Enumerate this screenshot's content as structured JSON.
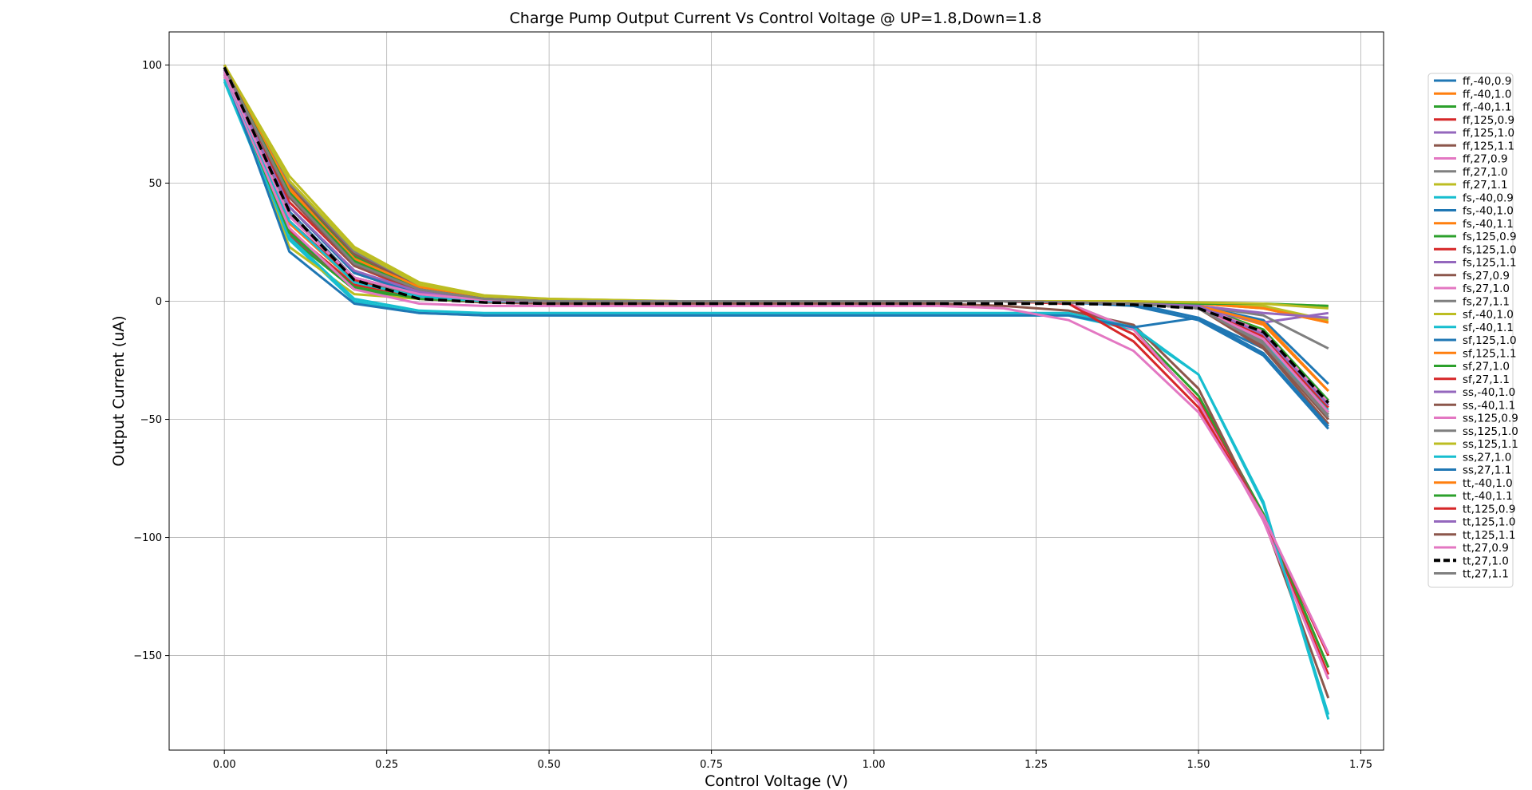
{
  "chart_data": {
    "type": "line",
    "title": "Charge Pump Output Current Vs Control Voltage @ UP=1.8,Down=1.8",
    "xlabel": "Control Voltage (V)",
    "ylabel": "Output Current (uA)",
    "xlim": [
      -0.085,
      1.785
    ],
    "ylim": [
      -190,
      114
    ],
    "xticks": [
      0.0,
      0.25,
      0.5,
      0.75,
      1.0,
      1.25,
      1.5,
      1.75
    ],
    "xtick_labels": [
      "0.00",
      "0.25",
      "0.50",
      "0.75",
      "1.00",
      "1.25",
      "1.50",
      "1.75"
    ],
    "yticks": [
      100,
      50,
      0,
      -50,
      -100,
      -150
    ],
    "ytick_labels": [
      "100",
      "50",
      "0",
      "−50",
      "−100",
      "−150"
    ],
    "grid": true,
    "legend_position": "outside-right",
    "x": [
      0.0,
      0.1,
      0.2,
      0.3,
      0.4,
      0.5,
      0.6,
      0.7,
      0.8,
      0.9,
      1.0,
      1.1,
      1.2,
      1.3,
      1.4,
      1.5,
      1.6,
      1.7
    ],
    "series": [
      {
        "name": "ff,-40,0.9",
        "color": "#1f77b4",
        "values": [
          99,
          46,
          16,
          5,
          1,
          0,
          0,
          0,
          0,
          0,
          0,
          0,
          0,
          -0.5,
          -1,
          -2,
          -8,
          -35
        ]
      },
      {
        "name": "ff,-40,1.0",
        "color": "#ff7f0e",
        "values": [
          99,
          48,
          18,
          6,
          1.5,
          0.5,
          0,
          0,
          0,
          0,
          0,
          0,
          0,
          -0.5,
          -1,
          -2,
          -10,
          -38
        ]
      },
      {
        "name": "ff,-40,1.1",
        "color": "#2ca02c",
        "values": [
          99,
          49,
          19,
          6,
          1.5,
          0.5,
          0,
          0,
          0,
          0,
          0,
          0,
          0,
          -0.5,
          -1,
          -2,
          -12,
          -42
        ]
      },
      {
        "name": "ff,125,0.9",
        "color": "#d62728",
        "values": [
          98,
          45,
          17,
          5,
          1,
          0,
          0,
          0,
          0,
          0,
          0,
          0,
          0,
          -0.5,
          -1,
          -3,
          -14,
          -44
        ]
      },
      {
        "name": "ff,125,1.0",
        "color": "#9467bd",
        "values": [
          98,
          47,
          18,
          5.5,
          1.5,
          0,
          0,
          0,
          0,
          0,
          0,
          0,
          0,
          -0.5,
          -1,
          -3,
          -16,
          -48
        ]
      },
      {
        "name": "ff,125,1.1",
        "color": "#8c564b",
        "values": [
          99,
          49,
          20,
          6,
          1.5,
          0.5,
          0,
          0,
          0,
          0,
          0,
          0,
          0,
          -0.5,
          -1,
          -3,
          -18,
          -50
        ]
      },
      {
        "name": "ff,27,0.9",
        "color": "#e377c2",
        "values": [
          98,
          46,
          17,
          5,
          1,
          0,
          0,
          0,
          0,
          0,
          0,
          0,
          0,
          -0.5,
          -1,
          -2,
          -13,
          -43
        ]
      },
      {
        "name": "ff,27,1.0",
        "color": "#7f7f7f",
        "values": [
          99,
          50,
          21,
          7,
          2,
          0.5,
          0,
          0,
          0,
          0,
          0,
          0,
          0,
          -0.5,
          -1,
          -2,
          -15,
          -47
        ]
      },
      {
        "name": "ff,27,1.1",
        "color": "#bcbd22",
        "values": [
          100,
          53,
          23,
          8,
          2.5,
          1,
          0.5,
          0,
          0,
          0,
          0,
          0,
          0,
          0,
          0,
          -1,
          -2,
          -8
        ]
      },
      {
        "name": "fs,-40,0.9",
        "color": "#17becf",
        "values": [
          93,
          26,
          0,
          -5,
          -6,
          -6,
          -6,
          -6,
          -6,
          -6,
          -6,
          -6,
          -6,
          -6,
          -12,
          -31,
          -85,
          -177
        ]
      },
      {
        "name": "fs,-40,1.0",
        "color": "#1f77b4",
        "values": [
          96,
          38,
          10,
          2,
          0,
          0,
          0,
          0,
          0,
          0,
          0,
          0,
          0,
          -0.5,
          -2,
          -8,
          -23,
          -54
        ]
      },
      {
        "name": "fs,-40,1.1",
        "color": "#ff7f0e",
        "values": [
          98,
          47,
          18,
          6,
          1.5,
          0.5,
          0,
          0,
          0,
          0,
          0,
          0,
          0,
          0,
          -0.5,
          -1,
          -3,
          -9
        ]
      },
      {
        "name": "fs,125,0.9",
        "color": "#2ca02c",
        "values": [
          95,
          27,
          5,
          1,
          0,
          0,
          0,
          0,
          0,
          0,
          0,
          0,
          0,
          -1,
          -12,
          -40,
          -90,
          -155
        ]
      },
      {
        "name": "fs,125,1.0",
        "color": "#d62728",
        "values": [
          96,
          30,
          7,
          2,
          0,
          0,
          0,
          0,
          0,
          0,
          0,
          0,
          0,
          -1,
          -14,
          -42,
          -92,
          -158
        ]
      },
      {
        "name": "fs,125,1.1",
        "color": "#9467bd",
        "values": [
          97,
          37,
          10,
          3,
          0.5,
          0,
          0,
          0,
          0,
          0,
          0,
          0,
          0,
          -0.5,
          -1,
          -3,
          -9,
          -5
        ]
      },
      {
        "name": "fs,27,0.9",
        "color": "#8c564b",
        "values": [
          96,
          28,
          6,
          1,
          -0.5,
          -1,
          -1,
          -1,
          -1,
          -1,
          -1,
          -1,
          -2,
          -4,
          -10,
          -37,
          -92,
          -168
        ]
      },
      {
        "name": "fs,27,1.0",
        "color": "#e377c2",
        "values": [
          95,
          33,
          8,
          2,
          0,
          0,
          0,
          0,
          0,
          0,
          0,
          0,
          0,
          -1,
          -12,
          -43,
          -93,
          -160
        ]
      },
      {
        "name": "fs,27,1.1",
        "color": "#7f7f7f",
        "values": [
          98,
          40,
          12,
          3,
          1,
          0,
          0,
          0,
          0,
          0,
          0,
          0,
          0,
          -0.5,
          -1,
          -2,
          -6,
          -20
        ]
      },
      {
        "name": "sf,-40,1.0",
        "color": "#bcbd22",
        "values": [
          97,
          23,
          3,
          1,
          0,
          0,
          0,
          0,
          0,
          0,
          0,
          0,
          0,
          -0.5,
          -1,
          -1,
          -1,
          -2
        ]
      },
      {
        "name": "sf,-40,1.1",
        "color": "#17becf",
        "values": [
          94,
          27,
          1,
          -4,
          -5,
          -5,
          -5,
          -5,
          -5,
          -5,
          -5,
          -5,
          -5,
          -5,
          -11,
          -31,
          -86,
          -175
        ]
      },
      {
        "name": "sf,125,1.0",
        "color": "#1f77b4",
        "values": [
          97,
          21,
          -1,
          -5,
          -6,
          -6,
          -6,
          -6,
          -6,
          -6,
          -6,
          -6,
          -6,
          -6,
          -11,
          -7,
          -20,
          -49
        ]
      },
      {
        "name": "sf,125,1.1",
        "color": "#ff7f0e",
        "values": [
          98,
          33,
          8,
          2,
          0,
          0,
          0,
          0,
          0,
          0,
          0,
          0,
          0,
          0,
          -0.5,
          -1,
          -3,
          -9
        ]
      },
      {
        "name": "sf,27,1.0",
        "color": "#2ca02c",
        "values": [
          97,
          29,
          6,
          1,
          0,
          0,
          0,
          0,
          0,
          0,
          0,
          0,
          0,
          -0.5,
          -1,
          -1,
          -1,
          -2
        ]
      },
      {
        "name": "sf,27,1.1",
        "color": "#d62728",
        "values": [
          98,
          34,
          9,
          2,
          0,
          0,
          0,
          0,
          0,
          0,
          0,
          0,
          0,
          -1,
          -17,
          -45,
          -91,
          -150
        ]
      },
      {
        "name": "ss,-40,1.0",
        "color": "#9467bd",
        "values": [
          99,
          36,
          10,
          3,
          0.5,
          0,
          0,
          0,
          0,
          0,
          0,
          0,
          0,
          -0.5,
          -1,
          -2,
          -5,
          -7
        ]
      },
      {
        "name": "ss,-40,1.1",
        "color": "#8c564b",
        "values": [
          100,
          40,
          12,
          3,
          1,
          0,
          0,
          0,
          0,
          0,
          0,
          0,
          0,
          -0.5,
          -1,
          -3,
          -20,
          -52
        ]
      },
      {
        "name": "ss,125,0.9",
        "color": "#e377c2",
        "values": [
          96,
          31,
          5,
          -1,
          -2,
          -2,
          -2,
          -2,
          -2,
          -2,
          -2,
          -2,
          -3,
          -8,
          -21,
          -47,
          -91,
          -149
        ]
      },
      {
        "name": "ss,125,1.0",
        "color": "#7f7f7f",
        "values": [
          98,
          37,
          10,
          2,
          0,
          0,
          0,
          0,
          0,
          0,
          0,
          0,
          0,
          -0.5,
          -1,
          -3,
          -17,
          -48
        ]
      },
      {
        "name": "ss,125,1.1",
        "color": "#bcbd22",
        "values": [
          100,
          51,
          22,
          7,
          2,
          1,
          0.5,
          0,
          0,
          0,
          0,
          0,
          0,
          0,
          0,
          -0.5,
          -1,
          -3
        ]
      },
      {
        "name": "ss,27,1.0",
        "color": "#17becf",
        "values": [
          97,
          34,
          8,
          2,
          0,
          0,
          0,
          0,
          0,
          0,
          0,
          0,
          0,
          -0.5,
          -1,
          -3,
          -18,
          -46
        ]
      },
      {
        "name": "ss,27,1.1",
        "color": "#1f77b4",
        "values": [
          98,
          40,
          12,
          3,
          0.5,
          0,
          0,
          0,
          0,
          0,
          0,
          0,
          0,
          -0.5,
          -1,
          -7,
          -22,
          -53
        ]
      },
      {
        "name": "tt,-40,1.0",
        "color": "#ff7f0e",
        "values": [
          99,
          48,
          17,
          5,
          1,
          0,
          0,
          0,
          0,
          0,
          0,
          0,
          0,
          -0.5,
          -1,
          -2,
          -9,
          -38
        ]
      },
      {
        "name": "tt,-40,1.1",
        "color": "#2ca02c",
        "values": [
          99,
          46,
          17,
          5,
          1,
          0,
          0,
          0,
          0,
          0,
          0,
          0,
          0,
          -0.5,
          -1,
          -2,
          -16,
          -47
        ]
      },
      {
        "name": "tt,125,0.9",
        "color": "#d62728",
        "values": [
          98,
          42,
          15,
          4,
          1,
          0,
          0,
          0,
          0,
          0,
          0,
          0,
          0,
          -0.5,
          -1,
          -3,
          -15,
          -45
        ]
      },
      {
        "name": "tt,125,1.0",
        "color": "#9467bd",
        "values": [
          98,
          40,
          13,
          4,
          1,
          0,
          0,
          0,
          0,
          0,
          0,
          0,
          0,
          -0.5,
          -1,
          -2,
          -14,
          -44
        ]
      },
      {
        "name": "tt,125,1.1",
        "color": "#8c564b",
        "values": [
          99,
          44,
          15,
          5,
          1,
          0,
          0,
          0,
          0,
          0,
          0,
          0,
          0,
          -0.5,
          -1,
          -3,
          -19,
          -50
        ]
      },
      {
        "name": "tt,27,0.9",
        "color": "#e377c2",
        "values": [
          97,
          36,
          10,
          3,
          0.5,
          0,
          0,
          0,
          0,
          0,
          0,
          0,
          0,
          -0.5,
          -1,
          -3,
          -16,
          -47
        ]
      },
      {
        "name": "tt,27,1.0",
        "color": "#000000",
        "dashed": true,
        "values": [
          99,
          38,
          9,
          1,
          -0.5,
          -1,
          -1,
          -1,
          -1,
          -1,
          -1,
          -1,
          -1,
          -1,
          -1.5,
          -3,
          -13,
          -43
        ]
      },
      {
        "name": "tt,27,1.1",
        "color": "#7f7f7f",
        "values": [
          99,
          45,
          16,
          5,
          1,
          0,
          0,
          0,
          0,
          0,
          0,
          0,
          0,
          -0.5,
          -1,
          -3,
          -18,
          -49
        ]
      }
    ]
  }
}
